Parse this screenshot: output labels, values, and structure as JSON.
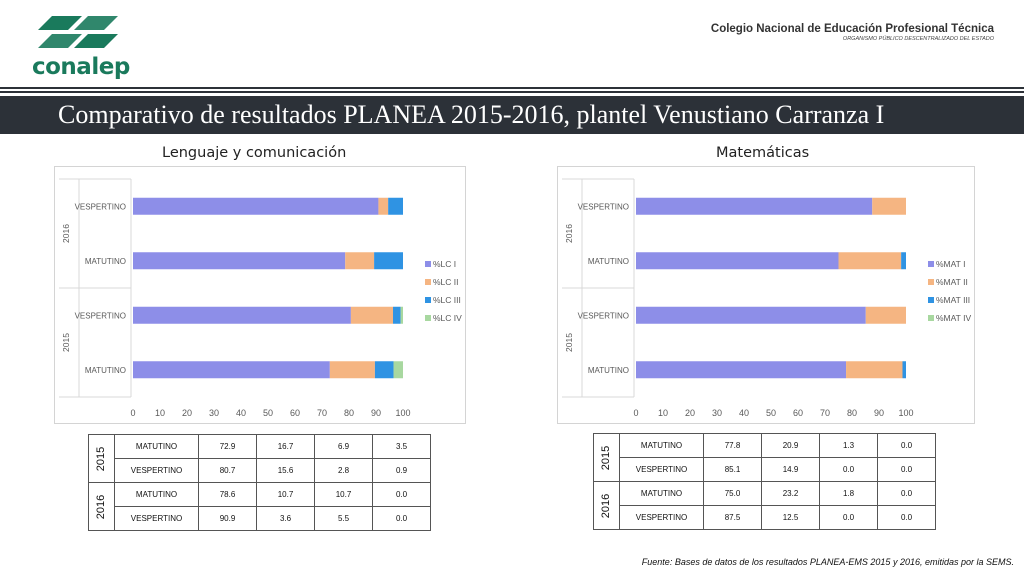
{
  "header": {
    "logo_text": "conalep",
    "org_name": "Colegio Nacional de Educación Profesional Técnica",
    "org_sub": "ORGANISMO PÚBLICO DESCENTRALIZADO DEL ESTADO"
  },
  "title": "Comparativo de resultados PLANEA 2015-2016, plantel Venustiano Carranza I",
  "colors": {
    "level1": "#8d8ee8",
    "level2": "#f5b582",
    "level3": "#2f93e3",
    "level4": "#a8d8a0",
    "banner": "#2c3138",
    "brand": "#1a7a5c"
  },
  "chart_data": [
    {
      "type": "bar",
      "orientation": "horizontal",
      "stacked": true,
      "title": "Lenguaje y comunicación",
      "xlim": [
        0,
        100
      ],
      "xticks": [
        "0",
        "10",
        "20",
        "30",
        "40",
        "50",
        "60",
        "70",
        "80",
        "90",
        "100"
      ],
      "rows": [
        {
          "year": "2016",
          "shift": "VESPERTINO"
        },
        {
          "year": "2016",
          "shift": "MATUTINO"
        },
        {
          "year": "2015",
          "shift": "VESPERTINO"
        },
        {
          "year": "2015",
          "shift": "MATUTINO"
        }
      ],
      "year_groups": [
        "2016",
        "2015"
      ],
      "series": [
        {
          "name": "%LC I",
          "values": [
            90.9,
            78.6,
            80.7,
            72.9
          ]
        },
        {
          "name": "%LC II",
          "values": [
            3.6,
            10.7,
            15.6,
            16.7
          ]
        },
        {
          "name": "%LC III",
          "values": [
            5.5,
            10.7,
            2.8,
            6.9
          ]
        },
        {
          "name": "%LC IV",
          "values": [
            0.0,
            0.0,
            0.9,
            3.5
          ]
        }
      ],
      "legend": "right"
    },
    {
      "type": "bar",
      "orientation": "horizontal",
      "stacked": true,
      "title": "Matemáticas",
      "xlim": [
        0,
        100
      ],
      "xticks": [
        "0",
        "10",
        "20",
        "30",
        "40",
        "50",
        "60",
        "70",
        "80",
        "90",
        "100"
      ],
      "rows": [
        {
          "year": "2016",
          "shift": "VESPERTINO"
        },
        {
          "year": "2016",
          "shift": "MATUTINO"
        },
        {
          "year": "2015",
          "shift": "VESPERTINO"
        },
        {
          "year": "2015",
          "shift": "MATUTINO"
        }
      ],
      "year_groups": [
        "2016",
        "2015"
      ],
      "series": [
        {
          "name": "%MAT I",
          "values": [
            87.5,
            75.0,
            85.1,
            77.8
          ]
        },
        {
          "name": "%MAT II",
          "values": [
            12.5,
            23.2,
            14.9,
            20.9
          ]
        },
        {
          "name": "%MAT III",
          "values": [
            0.0,
            1.8,
            0.0,
            1.3
          ]
        },
        {
          "name": "%MAT IV",
          "values": [
            0.0,
            0.0,
            0.0,
            0.0
          ]
        }
      ],
      "legend": "right"
    }
  ],
  "tables": [
    {
      "groups": [
        {
          "year": "2015",
          "rows": [
            {
              "shift": "MATUTINO",
              "values": [
                "72.9",
                "16.7",
                "6.9",
                "3.5"
              ]
            },
            {
              "shift": "VESPERTINO",
              "values": [
                "80.7",
                "15.6",
                "2.8",
                "0.9"
              ]
            }
          ]
        },
        {
          "year": "2016",
          "rows": [
            {
              "shift": "MATUTINO",
              "values": [
                "78.6",
                "10.7",
                "10.7",
                "0.0"
              ]
            },
            {
              "shift": "VESPERTINO",
              "values": [
                "90.9",
                "3.6",
                "5.5",
                "0.0"
              ]
            }
          ]
        }
      ]
    },
    {
      "groups": [
        {
          "year": "2015",
          "rows": [
            {
              "shift": "MATUTINO",
              "values": [
                "77.8",
                "20.9",
                "1.3",
                "0.0"
              ]
            },
            {
              "shift": "VESPERTINO",
              "values": [
                "85.1",
                "14.9",
                "0.0",
                "0.0"
              ]
            }
          ]
        },
        {
          "year": "2016",
          "rows": [
            {
              "shift": "MATUTINO",
              "values": [
                "75.0",
                "23.2",
                "1.8",
                "0.0"
              ]
            },
            {
              "shift": "VESPERTINO",
              "values": [
                "87.5",
                "12.5",
                "0.0",
                "0.0"
              ]
            }
          ]
        }
      ]
    }
  ],
  "footer": {
    "source": "Fuente: Bases de datos de los resultados PLANEA-EMS 2015 y 2016, emitidas por la SEMS."
  }
}
